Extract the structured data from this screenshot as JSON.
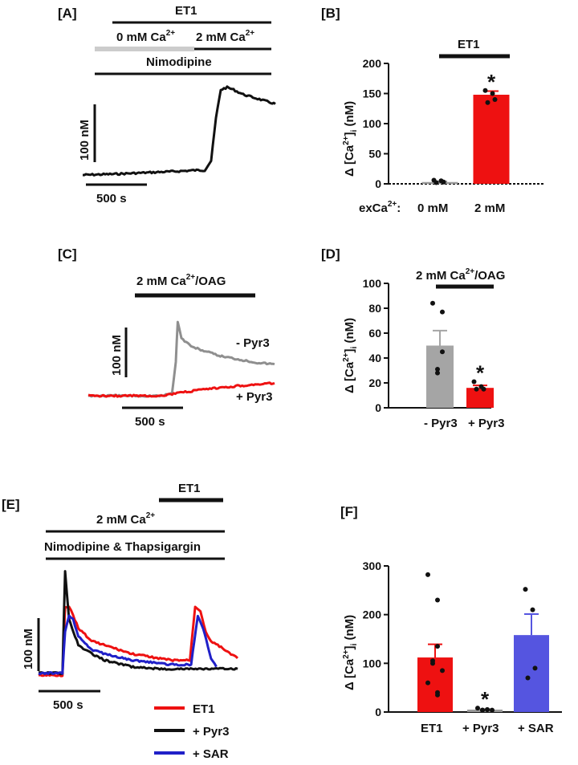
{
  "colors": {
    "red": "#ee1111",
    "gray": "#9b9b9b",
    "black": "#111111",
    "blue": "#2323d6",
    "sar_bar": "#5555e0",
    "pale": "#cccccc"
  },
  "chart_data": [
    {
      "panel": "[A]",
      "type": "line",
      "title": "",
      "bars": [
        {
          "label": "ET1",
          "color": "#111111"
        },
        {
          "label": "0 mM Ca",
          "sup": "2+",
          "color": "#cccccc"
        },
        {
          "label": "2 mM Ca",
          "sup": "2+",
          "color": "#111111"
        },
        {
          "label": "Nimodipine",
          "color": "#111111"
        }
      ],
      "scale": {
        "y": "100 nM",
        "x": "500 s"
      },
      "series": [
        {
          "name": "ET1",
          "color": "#111111",
          "x": [
            0,
            200,
            400,
            600,
            700,
            760,
            800,
            830,
            860,
            900,
            940,
            1000,
            1100,
            1200
          ],
          "y": [
            0,
            2,
            5,
            8,
            10,
            10,
            30,
            120,
            180,
            185,
            180,
            170,
            160,
            150
          ]
        }
      ],
      "xlim": [
        0,
        1200
      ],
      "ylim": [
        0,
        200
      ]
    },
    {
      "panel": "[B]",
      "type": "bar",
      "title": "ET1",
      "ylabel": "Δ [Ca2+]i (nM)",
      "ylim": [
        0,
        200
      ],
      "yticks": [
        0,
        50,
        100,
        150,
        200
      ],
      "categories": [
        "0 mM",
        "2 mM"
      ],
      "xprefix": "exCa",
      "values": [
        3,
        148
      ],
      "errors": [
        1,
        6
      ],
      "colors": [
        "#9b9b9b",
        "#ee1111"
      ],
      "points": [
        [
          6,
          5,
          3,
          2
        ],
        [
          155,
          150,
          140,
          135
        ]
      ],
      "significance": [
        "",
        "*"
      ]
    },
    {
      "panel": "[C]",
      "type": "line",
      "bars": [
        {
          "label": "2 mM Ca",
          "sup": "2+",
          "suffix": "/OAG",
          "color": "#111111"
        }
      ],
      "scale": {
        "y": "100 nM",
        "x": "500 s"
      },
      "series": [
        {
          "name": "- Pyr3",
          "color": "#8f8f8f",
          "x": [
            0,
            200,
            400,
            450,
            470,
            480,
            500,
            560,
            700,
            900,
            1000
          ],
          "y": [
            0,
            0,
            0,
            5,
            60,
            130,
            100,
            85,
            70,
            58,
            55
          ]
        },
        {
          "name": "+ Pyr3",
          "color": "#ee1111",
          "x": [
            0,
            200,
            400,
            450,
            600,
            800,
            1000
          ],
          "y": [
            0,
            0,
            0,
            3,
            10,
            17,
            22
          ]
        }
      ],
      "xlim": [
        0,
        1000
      ],
      "ylim": [
        0,
        140
      ]
    },
    {
      "panel": "[D]",
      "type": "bar",
      "title": "2 mM Ca2+/OAG",
      "ylabel": "Δ [Ca2+]i (nM)",
      "ylim": [
        0,
        100
      ],
      "yticks": [
        0,
        20,
        40,
        60,
        80,
        100
      ],
      "categories": [
        "- Pyr3",
        "+ Pyr3"
      ],
      "values": [
        50,
        16
      ],
      "errors": [
        12,
        2
      ],
      "colors": [
        "#a5a5a5",
        "#ee1111"
      ],
      "points": [
        [
          84,
          77,
          45,
          31,
          28
        ],
        [
          21,
          17,
          15,
          15
        ]
      ],
      "significance": [
        "",
        "*"
      ]
    },
    {
      "panel": "[E]",
      "type": "line",
      "bars": [
        {
          "label": "ET1",
          "color": "#111111"
        },
        {
          "label": "2 mM Ca",
          "sup": "2+",
          "color": "#111111"
        },
        {
          "label": "Nimodipine & Thapsigargin",
          "color": "#111111"
        }
      ],
      "scale": {
        "y": "100 nM",
        "x": "500 s"
      },
      "series": [
        {
          "name": "ET1",
          "color": "#ee1111",
          "x": [
            0,
            180,
            200,
            230,
            260,
            300,
            400,
            500,
            700,
            1000,
            1140,
            1180,
            1220,
            1260,
            1300,
            1400,
            1500
          ],
          "y": [
            20,
            20,
            180,
            180,
            160,
            130,
            100,
            90,
            70,
            55,
            55,
            180,
            170,
            120,
            100,
            80,
            60
          ]
        },
        {
          "name": "+ Pyr3",
          "color": "#111111",
          "x": [
            0,
            180,
            200,
            230,
            300,
            400,
            500,
            700,
            900,
            1000,
            1500
          ],
          "y": [
            25,
            25,
            260,
            150,
            90,
            70,
            55,
            40,
            35,
            35,
            35
          ]
        },
        {
          "name": "+ SAR",
          "color": "#2020c8",
          "x": [
            0,
            180,
            200,
            230,
            260,
            300,
            400,
            500,
            700,
            1000,
            1150,
            1200,
            1240,
            1300,
            1340
          ],
          "y": [
            25,
            25,
            120,
            160,
            150,
            110,
            80,
            70,
            55,
            45,
            45,
            160,
            130,
            60,
            40
          ]
        }
      ],
      "xlim": [
        0,
        1500
      ],
      "ylim": [
        0,
        280
      ]
    },
    {
      "panel": "[F]",
      "type": "bar",
      "ylabel": "Δ [Ca2+]i (nM)",
      "ylim": [
        0,
        300
      ],
      "yticks": [
        0,
        100,
        200,
        300
      ],
      "categories": [
        "ET1",
        "+ Pyr3",
        "+ SAR"
      ],
      "values": [
        112,
        5,
        158
      ],
      "errors": [
        27,
        1,
        43
      ],
      "colors": [
        "#ee1111",
        "#9b9b9b",
        "#5555e0"
      ],
      "points": [
        [
          282,
          230,
          135,
          105,
          100,
          85,
          60,
          40,
          35
        ],
        [
          8,
          5,
          5,
          4,
          4,
          4
        ],
        [
          252,
          210,
          90,
          70
        ]
      ],
      "significance": [
        "",
        "*",
        ""
      ]
    }
  ],
  "legend_E": [
    {
      "label": "ET1",
      "color": "#ee1111"
    },
    {
      "label": "+ Pyr3",
      "color": "#111111"
    },
    {
      "label": "+ SAR",
      "color": "#2020c8"
    }
  ]
}
